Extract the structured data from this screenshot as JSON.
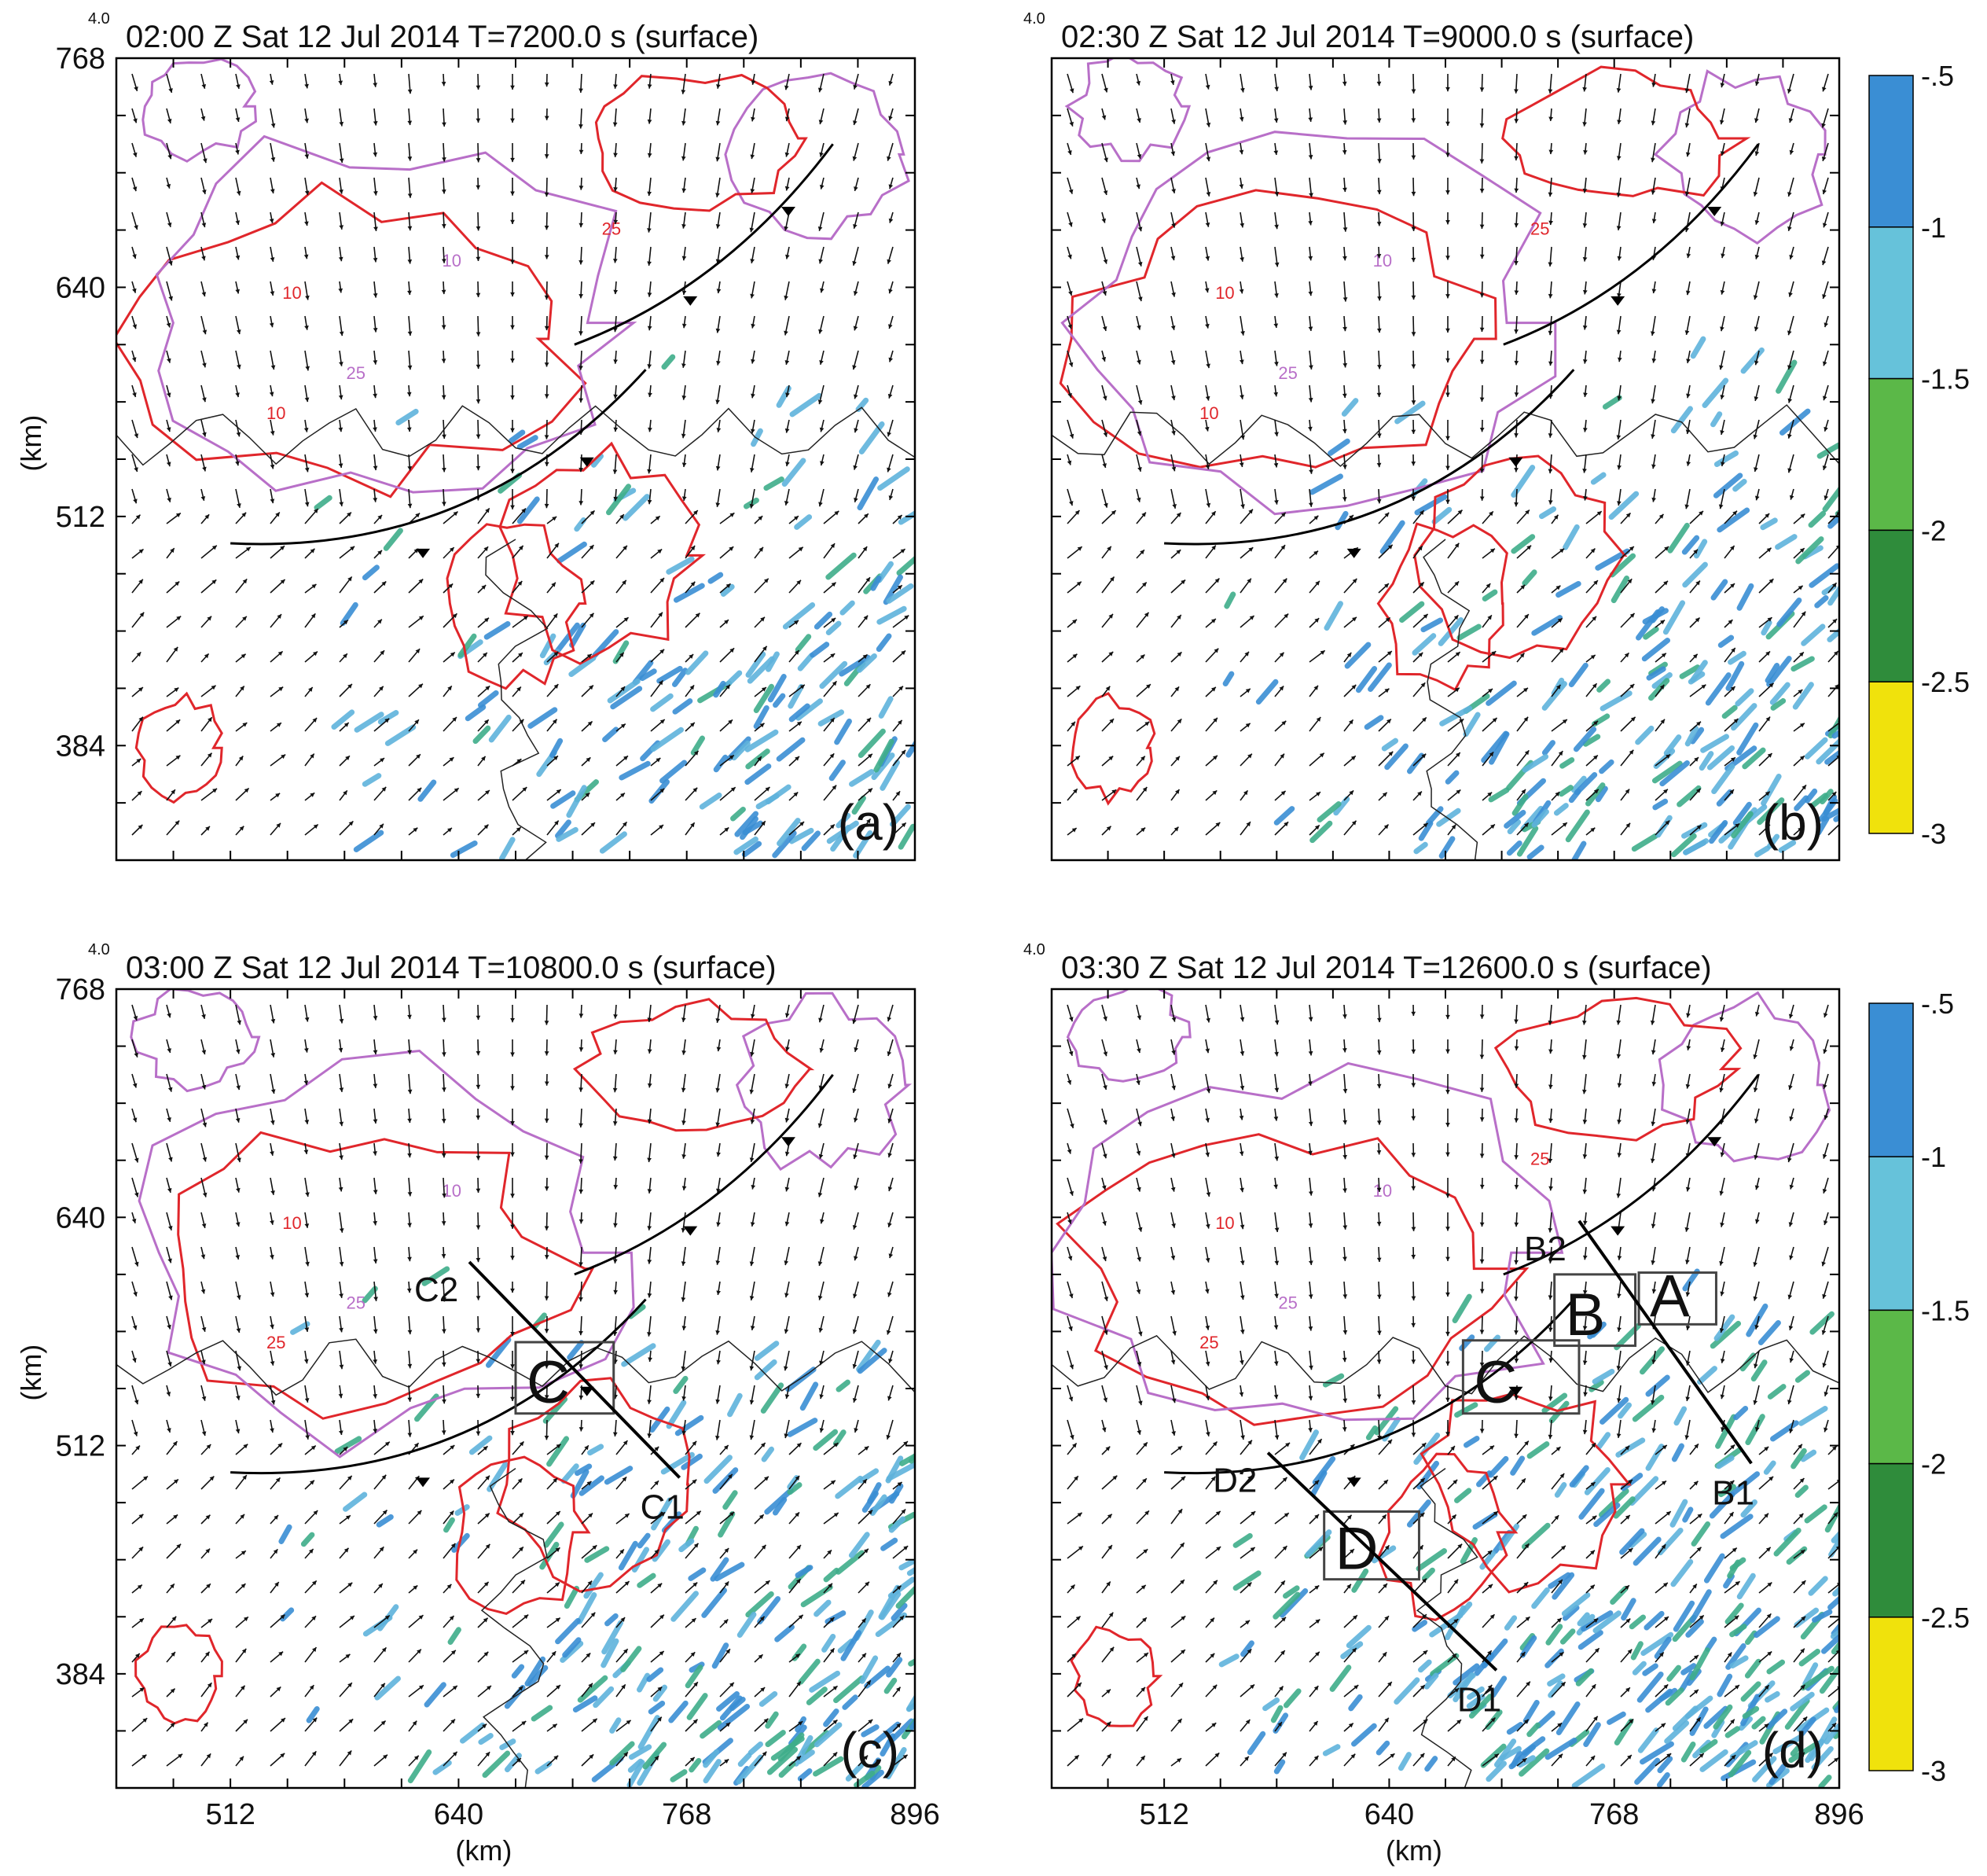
{
  "chart_data": [
    {
      "type": "other",
      "panel_label": "(a)",
      "title": "02:00 Z Sat 12 Jul 2014 T=7200.0 s (surface)",
      "corner_marker": "4.0",
      "xlim": [
        448,
        896
      ],
      "ylim": [
        320,
        768
      ],
      "x_ticks": [],
      "y_ticks": [
        "768",
        "640",
        "512",
        "384"
      ],
      "xlabel": "",
      "ylabel": "(km)",
      "contour_labels": [
        "10",
        "10",
        "10",
        "25",
        "25"
      ],
      "boxes": [],
      "segments": []
    },
    {
      "type": "other",
      "panel_label": "(b)",
      "title": "02:30 Z Sat 12 Jul 2014 T=9000.0 s (surface)",
      "corner_marker": "4.0",
      "xlim": [
        448,
        896
      ],
      "ylim": [
        320,
        768
      ],
      "x_ticks": [],
      "y_ticks": [],
      "xlabel": "",
      "ylabel": "",
      "contour_labels": [
        "10",
        "10",
        "10",
        "25",
        "25"
      ],
      "boxes": [],
      "segments": []
    },
    {
      "type": "other",
      "panel_label": "(c)",
      "title": "03:00 Z Sat 12 Jul 2014 T=10800.0 s (surface)",
      "corner_marker": "4.0",
      "xlim": [
        448,
        896
      ],
      "ylim": [
        320,
        768
      ],
      "x_ticks": [
        "512",
        "640",
        "768",
        "896"
      ],
      "y_ticks": [
        "768",
        "640",
        "512",
        "384"
      ],
      "xlabel": "(km)",
      "ylabel": "(km)",
      "contour_labels": [
        "10",
        "10",
        "25",
        "25"
      ],
      "boxes": [
        {
          "label": "C",
          "x0": 672,
          "x1": 727,
          "y0": 530,
          "y1": 570
        }
      ],
      "segments": [
        {
          "start": "C2",
          "end": "C1",
          "start_xy": [
            646,
            615
          ],
          "end_xy": [
            764,
            494
          ]
        }
      ]
    },
    {
      "type": "other",
      "panel_label": "(d)",
      "title": "03:30 Z Sat 12 Jul 2014 T=12600.0 s (surface)",
      "corner_marker": "4.0",
      "xlim": [
        448,
        896
      ],
      "ylim": [
        320,
        768
      ],
      "x_ticks": [
        "512",
        "640",
        "768",
        "896"
      ],
      "y_ticks": [],
      "xlabel": "(km)",
      "ylabel": "",
      "contour_labels": [
        "10",
        "10",
        "25",
        "25",
        "25"
      ],
      "boxes": [
        {
          "label": "A",
          "x0": 782,
          "x1": 826,
          "y0": 580,
          "y1": 609
        },
        {
          "label": "B",
          "x0": 734,
          "x1": 780,
          "y0": 568,
          "y1": 608
        },
        {
          "label": "C",
          "x0": 682,
          "x1": 748,
          "y0": 530,
          "y1": 571
        },
        {
          "label": "D",
          "x0": 603,
          "x1": 657,
          "y0": 437,
          "y1": 475
        }
      ],
      "segments": [
        {
          "start": "B2",
          "end": "B1",
          "start_xy": [
            748,
            638
          ],
          "end_xy": [
            846,
            502
          ]
        },
        {
          "start": "D2",
          "end": "D1",
          "start_xy": [
            571,
            508
          ],
          "end_xy": [
            701,
            386
          ]
        }
      ]
    }
  ],
  "colorbars": [
    {
      "ticks": [
        "-.5",
        "-1",
        "-1.5",
        "-2",
        "-2.5",
        "-3"
      ],
      "colors": [
        "#3a8ed4",
        "#66c2da",
        "#5bb848",
        "#2f8c3b",
        "#f0e20c"
      ]
    },
    {
      "ticks": [
        "-.5",
        "-1",
        "-1.5",
        "-2",
        "-2.5",
        "-3"
      ],
      "colors": [
        "#3a8ed4",
        "#66c2da",
        "#5bb848",
        "#2f8c3b",
        "#f0e20c"
      ]
    }
  ],
  "colors": {
    "contour_red": "#e0262b",
    "contour_purple": "#b86fc8",
    "vector": "#111111",
    "shade_blue": "#5fb3dc",
    "front": "#000000"
  }
}
